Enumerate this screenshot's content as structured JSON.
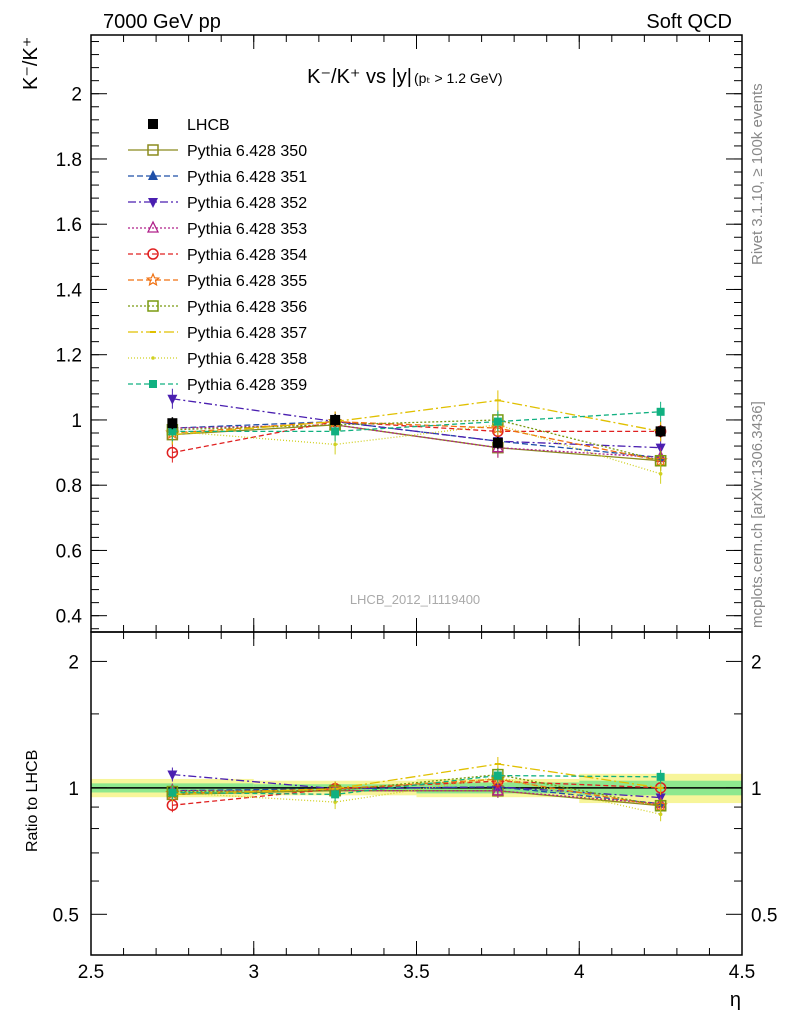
{
  "header": {
    "left": "7000 GeV pp",
    "right": "Soft QCD"
  },
  "side_labels": {
    "rivet": "Rivet 3.1.10, ≥ 100k events",
    "mcplots": "mcplots.cern.ch [arXiv:1306.3436]"
  },
  "chart_data": {
    "type": "scatter",
    "title_main": "K⁻/K⁺ vs |y|",
    "title_cut": "(pₜ > 1.2 GeV)",
    "analysis_id": "LHCB_2012_I1119400",
    "ylabel": "K⁻/K⁺",
    "xlabel": "η",
    "ratio_ylabel": "Ratio to LHCB",
    "xlim": [
      2.5,
      4.5
    ],
    "ylim": [
      0.35,
      2.18
    ],
    "ratio_ylim": [
      0.4,
      2.35
    ],
    "ratio_log_scale": true,
    "x_ticks": [
      "2.5",
      "3",
      "3.5",
      "4",
      "4.5"
    ],
    "y_ticks": [
      "0.4",
      "0.6",
      "0.8",
      "1",
      "1.2",
      "1.4",
      "1.6",
      "1.8",
      "2"
    ],
    "ratio_y_ticks": [
      "0.5",
      "1",
      "2"
    ],
    "x": [
      2.75,
      3.25,
      3.75,
      4.25
    ],
    "data": {
      "name": "LHCB",
      "y": [
        0.99,
        1.0,
        0.93,
        0.965
      ],
      "band_half_width_inner": [
        0.025,
        0.02,
        0.03,
        0.04
      ],
      "band_half_width_outer": [
        0.05,
        0.04,
        0.05,
        0.08
      ]
    },
    "series": [
      {
        "name": "Pythia 6.428 350",
        "color": "#8b8b1e",
        "dash": "",
        "marker": "open-square",
        "values": [
          0.955,
          0.985,
          0.915,
          0.875
        ]
      },
      {
        "name": "Pythia 6.428 351",
        "color": "#1f4fa8",
        "dash": "6,3",
        "marker": "filled-triangle",
        "values": [
          0.975,
          0.995,
          0.935,
          0.885
        ]
      },
      {
        "name": "Pythia 6.428 352",
        "color": "#4a1fb0",
        "dash": "8,3,2,3",
        "marker": "filled-triangle-down",
        "values": [
          1.065,
          0.995,
          0.935,
          0.915
        ]
      },
      {
        "name": "Pythia 6.428 353",
        "color": "#b0208a",
        "dash": "2,2",
        "marker": "open-triangle",
        "values": [
          0.975,
          0.985,
          0.915,
          0.885
        ]
      },
      {
        "name": "Pythia 6.428 354",
        "color": "#e02020",
        "dash": "5,3",
        "marker": "open-circle",
        "values": [
          0.9,
          0.995,
          0.965,
          0.965
        ]
      },
      {
        "name": "Pythia 6.428 355",
        "color": "#f07010",
        "dash": "6,3",
        "marker": "open-star",
        "values": [
          0.96,
          0.995,
          0.975,
          0.875
        ]
      },
      {
        "name": "Pythia 6.428 356",
        "color": "#7a9a10",
        "dash": "2,2",
        "marker": "open-square",
        "values": [
          0.97,
          0.985,
          1.0,
          0.875
        ]
      },
      {
        "name": "Pythia 6.428 357",
        "color": "#e0c000",
        "dash": "10,3,2,3",
        "marker": "tick",
        "values": [
          0.955,
          0.995,
          1.06,
          0.965
        ]
      },
      {
        "name": "Pythia 6.428 358",
        "color": "#d0d020",
        "dash": "1,2",
        "marker": "dot",
        "values": [
          0.965,
          0.925,
          0.985,
          0.835
        ]
      },
      {
        "name": "Pythia 6.428 359",
        "color": "#10b080",
        "dash": "5,3",
        "marker": "filled-square",
        "values": [
          0.965,
          0.965,
          0.995,
          1.025
        ]
      }
    ]
  }
}
